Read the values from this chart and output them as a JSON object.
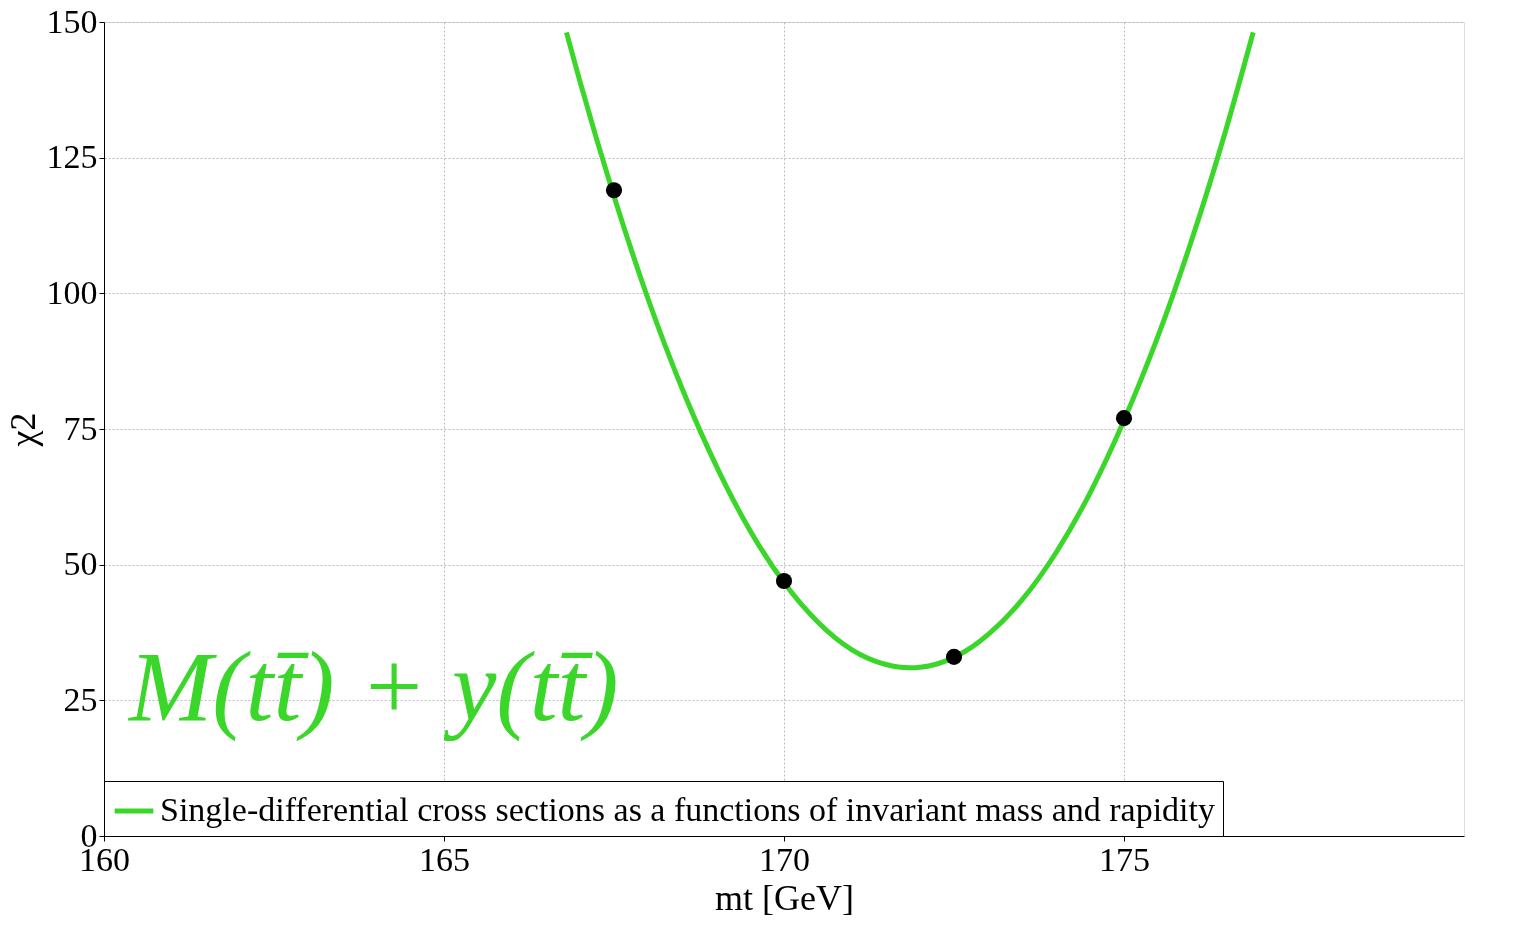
{
  "chart_data": {
    "type": "line",
    "xlabel": "mt [GeV]",
    "ylabel": "χ2",
    "xlim": [
      160,
      180
    ],
    "ylim": [
      0,
      150
    ],
    "xticks": [
      160,
      165,
      170,
      175
    ],
    "yticks": [
      0,
      25,
      50,
      75,
      100,
      125,
      150
    ],
    "grid": true,
    "legend": "bottom",
    "annotations": [
      "M(tt̄) + y(tt̄)"
    ],
    "series": [
      {
        "name": "Single-differential cross sections as a functions of invariant mass and rapidity",
        "color": "#3ad62a",
        "marker": "none",
        "x": [
          166.8,
          167,
          167.5,
          168,
          168.5,
          169,
          169.5,
          170,
          170.5,
          171,
          171.5,
          171.85,
          172,
          172.25,
          172.75,
          173,
          173.5,
          174,
          174.5,
          174.75,
          175.25,
          175.5,
          176,
          176.5,
          176.9
        ],
        "values": [
          148.1,
          139.0,
          117.9,
          99.0,
          82.5,
          68.3,
          56.3,
          46.7,
          39.4,
          34.3,
          31.6,
          31.0,
          31.1,
          31.7,
          34.7,
          37.1,
          43.5,
          52.2,
          63.2,
          69.6,
          84.1,
          92.1,
          110.0,
          130.2,
          148.1
        ]
      },
      {
        "type": "scatter",
        "color": "#000000",
        "marker": "circle",
        "x": [
          167.5,
          170,
          172.5,
          175
        ],
        "values": [
          119,
          47,
          33,
          77
        ]
      }
    ]
  }
}
